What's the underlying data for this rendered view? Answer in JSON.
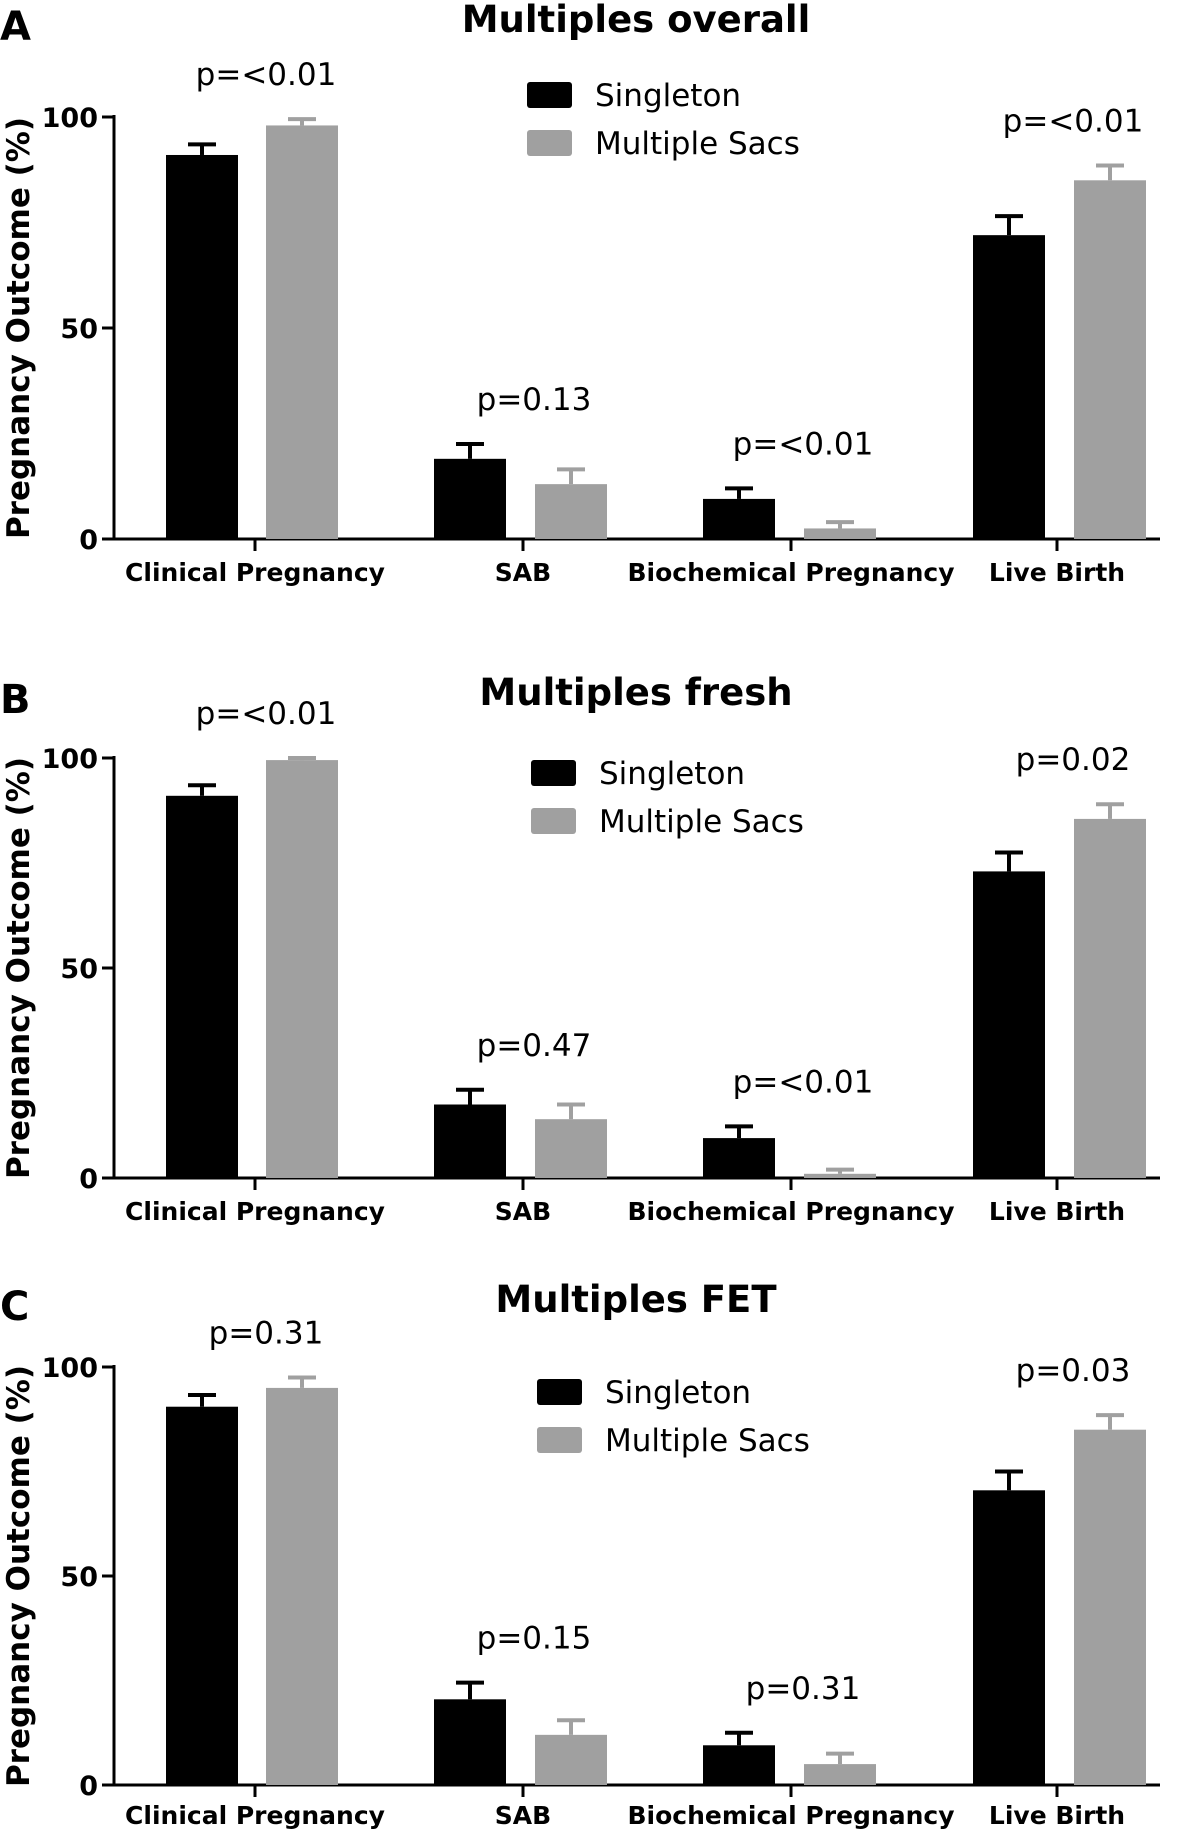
{
  "y_axis_label": "Pregnancy  Outcome  (%)",
  "chart_data": [
    {
      "panel": "A",
      "type": "bar",
      "title": "Multiples overall",
      "ylabel": "Pregnancy  Outcome  (%)",
      "ylim": [
        0,
        100
      ],
      "yticks": [
        0,
        50,
        100
      ],
      "categories": [
        "Clinical Pregnancy",
        "SAB",
        "Biochemical Pregnancy",
        "Live Birth"
      ],
      "series": [
        {
          "name": "Singleton",
          "color": "#000000",
          "values": [
            91,
            19,
            9.5,
            72
          ],
          "errors": [
            2.5,
            3.5,
            2.5,
            4.5
          ]
        },
        {
          "name": "Multiple Sacs",
          "color": "#a0a0a0",
          "values": [
            98,
            13,
            2.5,
            85
          ],
          "errors": [
            1.5,
            3.5,
            1.5,
            3.5
          ]
        }
      ],
      "p_values": [
        "p=<0.01",
        "p=0.13",
        "p=<0.01",
        "p=<0.01"
      ],
      "legend": "top-center"
    },
    {
      "panel": "B",
      "type": "bar",
      "title": "Multiples fresh",
      "ylabel": "Pregnancy  Outcome  (%)",
      "ylim": [
        0,
        100
      ],
      "yticks": [
        0,
        50,
        100
      ],
      "categories": [
        "Clinical Pregnancy",
        "SAB",
        "Biochemical Pregnancy",
        "Live Birth"
      ],
      "series": [
        {
          "name": "Singleton",
          "color": "#000000",
          "values": [
            91,
            17.5,
            9.5,
            73
          ],
          "errors": [
            2.5,
            3.5,
            2.8,
            4.5
          ]
        },
        {
          "name": "Multiple Sacs",
          "color": "#a0a0a0",
          "values": [
            99.5,
            14,
            1,
            85.5
          ],
          "errors": [
            0.5,
            3.5,
            1,
            3.5
          ]
        }
      ],
      "p_values": [
        "p=<0.01",
        "p=0.47",
        "p=<0.01",
        "p=0.02"
      ],
      "legend": "top-center"
    },
    {
      "panel": "C",
      "type": "bar",
      "title": "Multiples FET",
      "ylabel": "Pregnancy  Outcome  (%)",
      "ylim": [
        0,
        100
      ],
      "yticks": [
        0,
        50,
        100
      ],
      "categories": [
        "Clinical Pregnancy",
        "SAB",
        "Biochemical Pregnancy",
        "Live Birth"
      ],
      "series": [
        {
          "name": "Singleton",
          "color": "#000000",
          "values": [
            90.5,
            20.5,
            9.5,
            70.5
          ],
          "errors": [
            2.8,
            4,
            3,
            4.5
          ]
        },
        {
          "name": "Multiple Sacs",
          "color": "#a0a0a0",
          "values": [
            95,
            12,
            5,
            85
          ],
          "errors": [
            2.5,
            3.5,
            2.5,
            3.5
          ]
        }
      ],
      "p_values": [
        "p=0.31",
        "p=0.15",
        "p=0.31",
        "p=0.03"
      ],
      "legend": "top-center"
    }
  ]
}
